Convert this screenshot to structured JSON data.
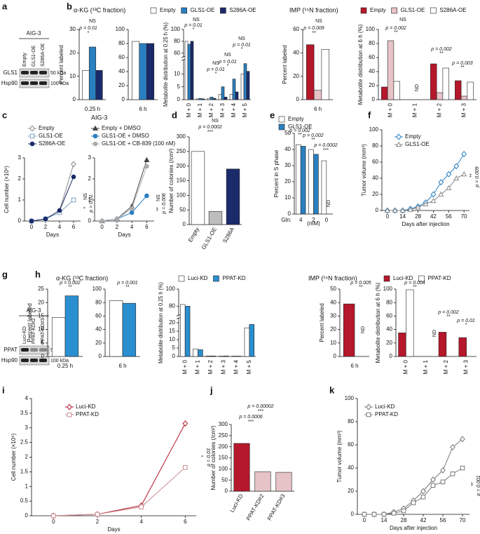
{
  "panel_labels": [
    "a",
    "b",
    "c",
    "d",
    "e",
    "f",
    "g",
    "h",
    "i",
    "j",
    "k"
  ],
  "blots": [
    {
      "title": "AIG-3",
      "lanes": [
        "Empty",
        "GLS1-OE",
        "S286A-OE"
      ],
      "proteins": [
        "GLS1",
        "Hsp90"
      ],
      "markers": [
        "50 kDa",
        "100 kDa"
      ]
    },
    {
      "title": "AIG-3",
      "lanes": [
        "Luci-KD",
        "PPAT-KD#2",
        "PPAT-KD#3"
      ],
      "proteins": [
        "PPAT",
        "Hsp90"
      ],
      "markers": [
        "50 kDa",
        "100 kDa"
      ]
    }
  ],
  "chart_data": [
    {
      "type": "bar",
      "title": "α-KG (¹³C fraction)",
      "ylabel": "Percent labeled",
      "xlabel": "0.25 h",
      "categories": [
        null
      ],
      "series": [
        {
          "name": "Empty",
          "color": "#ffffff",
          "values": [
            12.5
          ]
        },
        {
          "name": "GLS1-OE",
          "color": "#2a7fc0",
          "values": [
            22.5
          ]
        },
        {
          "name": "S286A-OE",
          "color": "#1b2a6b",
          "values": [
            12.5
          ]
        }
      ],
      "ylim": [
        0,
        30
      ],
      "yticks": [
        0,
        10,
        20,
        30
      ],
      "annotations": [
        "NS",
        "p = 0.01",
        "*"
      ]
    },
    {
      "type": "bar",
      "xlabel": "6 h",
      "categories": [
        null
      ],
      "series": [
        {
          "color": "#ffffff",
          "values": [
            83
          ]
        },
        {
          "color": "#2a7fc0",
          "values": [
            80
          ]
        },
        {
          "color": "#1b2a6b",
          "values": [
            80
          ]
        }
      ],
      "ylim": [
        0,
        100
      ],
      "yticks": [
        0,
        20,
        40,
        60,
        80,
        100
      ]
    },
    {
      "type": "bar",
      "ylabel": "Metabolite distribution at 0.25 h (%)",
      "categories": [
        "M + 0",
        "M + 1",
        "M + 2",
        "M + 3",
        "M + 4",
        "M + 5"
      ],
      "series": [
        {
          "color": "#ffffff",
          "values": [
            80,
            0.3,
            0.5,
            2,
            2,
            10
          ]
        },
        {
          "color": "#2a7fc0",
          "values": [
            75,
            0.5,
            1,
            5,
            8,
            14
          ]
        },
        {
          "color": "#1b2a6b",
          "values": [
            80,
            0.3,
            0.5,
            1,
            3,
            11
          ]
        }
      ],
      "ylim": [
        0,
        100
      ],
      "axis_break": [
        15,
        55
      ],
      "yticks": [
        0,
        5,
        10,
        60,
        80,
        100
      ],
      "annotations": [
        "NS",
        "p = 0.01",
        "*",
        "NS",
        "p = 0.01",
        "*",
        "NS",
        "p = 0.01",
        "*",
        "NS",
        "p = 0.01",
        "*"
      ]
    },
    {
      "type": "bar",
      "title": "IMP (¹⁵N fraction)",
      "ylabel": "Percent labeled",
      "xlabel": "6 h",
      "categories": [
        null
      ],
      "series": [
        {
          "name": "Empty",
          "color": "#b5172b",
          "values": [
            47
          ]
        },
        {
          "name": "GLS1-OE",
          "color": "#e6c3c6",
          "values": [
            8
          ]
        },
        {
          "name": "S286A-OE",
          "color": "#ffffff",
          "values": [
            43
          ]
        }
      ],
      "ylim": [
        0,
        60
      ],
      "yticks": [
        0,
        20,
        40,
        60
      ],
      "annotations": [
        "NS",
        "p = 0.009",
        "**"
      ]
    },
    {
      "type": "bar",
      "ylabel": "Metabolite distribution at 6 h (%)",
      "categories": [
        "M + 0",
        "M + 1",
        "M + 2",
        "M + 3"
      ],
      "series": [
        {
          "color": "#b5172b",
          "values": [
            18,
            null,
            51,
            27
          ]
        },
        {
          "color": "#e6c3c6",
          "values": [
            84,
            null,
            10,
            5
          ]
        },
        {
          "color": "#ffffff",
          "values": [
            26,
            null,
            45,
            25
          ]
        }
      ],
      "ylim": [
        0,
        100
      ],
      "yticks": [
        0,
        20,
        40,
        60,
        80,
        100
      ],
      "annotations": [
        "NS",
        "p = 0.002",
        "**",
        "ND",
        "p = 0.002",
        "**",
        "p = 0.003",
        "**"
      ]
    },
    {
      "type": "line",
      "title": "AIG-3",
      "ylabel": "Cell number (×10⁶)",
      "xlabel": "Days",
      "x": [
        0,
        2,
        4,
        6
      ],
      "series": [
        {
          "name": "Empty",
          "color": "#888888",
          "marker": "diamond",
          "filled": false,
          "values": [
            0,
            0.1,
            0.5,
            2.7
          ]
        },
        {
          "name": "GLS1-OE",
          "color": "#7f9fbf",
          "marker": "square",
          "filled": false,
          "values": [
            0,
            0.1,
            0.4,
            1.0
          ]
        },
        {
          "name": "S286A-OE",
          "color": "#1b2a6b",
          "marker": "circle",
          "filled": true,
          "values": [
            0,
            0.1,
            0.5,
            2.1
          ]
        }
      ],
      "xlim": [
        -1,
        7
      ],
      "xticks": [
        0,
        2,
        4,
        6
      ],
      "ylim": [
        0,
        3
      ],
      "yticks": [
        0,
        1,
        2,
        3
      ],
      "annotations": [
        "NS",
        "*",
        "p = 0.01"
      ]
    },
    {
      "type": "line",
      "xlabel": "Days",
      "x": [
        0,
        2,
        4,
        6
      ],
      "series": [
        {
          "name": "Empty + DMSO",
          "color": "#444444",
          "marker": "triangle",
          "filled": true,
          "values": [
            0,
            0.1,
            0.7,
            2.9
          ]
        },
        {
          "name": "GLS1-OE + DMSO",
          "color": "#2a7fc0",
          "marker": "circle",
          "filled": true,
          "values": [
            0,
            0.1,
            0.4,
            1.2
          ]
        },
        {
          "name": "GLS1-OE + CB-839 (100 nM)",
          "color": "#aaaaaa",
          "marker": "circle",
          "filled": true,
          "values": [
            0,
            0.1,
            0.6,
            2.6
          ]
        }
      ],
      "xlim": [
        -1,
        7
      ],
      "xticks": [
        0,
        2,
        4,
        6
      ],
      "ylim": [
        0,
        3
      ],
      "yticks": [
        0,
        1,
        2,
        3
      ],
      "annotations": [
        "NS",
        "**",
        "p = 0.006"
      ]
    },
    {
      "type": "bar",
      "ylabel": "Number of colonies (/cm²)",
      "categories": [
        "Empty",
        "GLS1-OE",
        "S286A"
      ],
      "series": [
        {
          "colors": [
            "#ffffff",
            "#bdbdbd",
            "#1b2a6b"
          ],
          "values": [
            250,
            45,
            190
          ]
        }
      ],
      "ylim": [
        0,
        300
      ],
      "yticks": [
        0,
        50,
        100,
        150,
        200,
        250,
        300
      ],
      "annotations": [
        "NS",
        "p = 0.0002",
        "***"
      ]
    },
    {
      "type": "bar",
      "ylabel": "Percent in S phase",
      "xlabel": "(mM)",
      "category_title": "Gln:",
      "categories": [
        "4",
        "2",
        "0"
      ],
      "series": [
        {
          "name": "Empty",
          "color": "#ffffff",
          "values": [
            43,
            40,
            33
          ]
        },
        {
          "name": "GLS1-OE",
          "color": "#2a7fc0",
          "values": [
            42,
            37,
            null
          ]
        }
      ],
      "ylim": [
        0,
        50
      ],
      "yticks": [
        0,
        10,
        20,
        30,
        40,
        50
      ],
      "annotations": [
        "p = 0.002",
        "**",
        "p = 0.002",
        "**",
        "p = 0.0002",
        "***",
        "ND"
      ]
    },
    {
      "type": "line",
      "ylabel": "Tumor volume (mm³)",
      "xlabel": "Days after injection",
      "x": [
        0,
        7,
        14,
        21,
        28,
        35,
        42,
        49,
        56,
        63,
        70
      ],
      "series": [
        {
          "name": "Empty",
          "color": "#2a7fc0",
          "marker": "diamond",
          "filled": false,
          "values": [
            0,
            0,
            0,
            2,
            5,
            10,
            20,
            35,
            45,
            55,
            70
          ]
        },
        {
          "name": "GLS1-OE",
          "color": "#888888",
          "marker": "triangle",
          "filled": false,
          "values": [
            0,
            0,
            0,
            1,
            4,
            8,
            12,
            20,
            28,
            40,
            45
          ]
        }
      ],
      "xlim": [
        -5,
        75
      ],
      "xticks": [
        0,
        14,
        28,
        42,
        56,
        70
      ],
      "ylim": [
        0,
        100
      ],
      "yticks": [
        0,
        20,
        40,
        60,
        80,
        100
      ],
      "annotations": [
        "**",
        "p = 0.009"
      ]
    },
    {
      "type": "bar",
      "title": "α-KG (¹³C fraction)",
      "ylabel": "Percent labeled",
      "xlabel": "0.25 h",
      "categories": [
        null
      ],
      "series": [
        {
          "name": "Luci-KD",
          "color": "#ffffff",
          "values": [
            14.5
          ]
        },
        {
          "name": "PPAT-KD",
          "color": "#2a8fd0",
          "values": [
            22.5
          ]
        }
      ],
      "ylim": [
        0,
        25
      ],
      "yticks": [
        0,
        5,
        10,
        15,
        20,
        25
      ],
      "annotations": [
        "p = 0.002",
        "**"
      ]
    },
    {
      "type": "bar",
      "xlabel": "6 h",
      "categories": [
        null
      ],
      "series": [
        {
          "color": "#ffffff",
          "values": [
            83
          ]
        },
        {
          "color": "#2a8fd0",
          "values": [
            79
          ]
        }
      ],
      "ylim": [
        0,
        100
      ],
      "yticks": [
        0,
        20,
        40,
        60,
        80,
        100
      ],
      "annotations": [
        "p = 0.001",
        "**"
      ]
    },
    {
      "type": "bar",
      "ylabel": "Metabolite distribution at 0.25 h (%)",
      "categories": [
        "M + 0",
        "M + 1",
        "M + 2",
        "M + 3",
        "M + 4",
        "M + 5"
      ],
      "series": [
        {
          "color": "#ffffff",
          "values": [
            82,
            4.5,
            0.3,
            0.2,
            0.2,
            17
          ]
        },
        {
          "color": "#2a8fd0",
          "values": [
            80,
            4,
            0.3,
            0.3,
            0.2,
            19
          ]
        }
      ],
      "ylim": [
        0,
        100
      ],
      "axis_break": [
        22,
        70
      ],
      "yticks": [
        0,
        5,
        10,
        15,
        20,
        80,
        100
      ]
    },
    {
      "type": "bar",
      "title": "IMP (¹⁵N fraction)",
      "ylabel": "Percent labeled",
      "xlabel": "6 h",
      "categories": [
        null
      ],
      "series": [
        {
          "name": "Luci-KD",
          "color": "#b5172b",
          "values": [
            39
          ]
        },
        {
          "name": "PPAT-KD",
          "color": "#ffffff",
          "values": [
            null
          ]
        }
      ],
      "ylim": [
        0,
        50
      ],
      "yticks": [
        0,
        10,
        20,
        30,
        40,
        50
      ],
      "annotations": [
        "p = 0.005",
        "**",
        "ND"
      ]
    },
    {
      "type": "bar",
      "ylabel": "Metabolite distribution at 6 h (%)",
      "categories": [
        "M + 0",
        "M + 1",
        "M + 2",
        "M + 3"
      ],
      "series": [
        {
          "color": "#b5172b",
          "values": [
            35,
            null,
            36,
            28
          ]
        },
        {
          "color": "#ffffff",
          "values": [
            99,
            null,
            0,
            0
          ]
        }
      ],
      "ylim": [
        0,
        100
      ],
      "yticks": [
        0,
        20,
        40,
        60,
        80,
        100
      ],
      "annotations": [
        "p = 0.004",
        "**",
        "ND",
        "p = 0.002",
        "**",
        "p = 0.01",
        "*"
      ]
    },
    {
      "type": "line",
      "ylabel": "Cell number (×10⁶)",
      "xlabel": "Days",
      "x": [
        0,
        2,
        4,
        6
      ],
      "series": [
        {
          "name": "Luci-KD",
          "color": "#b5172b",
          "marker": "diamond",
          "filled": false,
          "values": [
            0,
            0.05,
            0.35,
            3.15
          ]
        },
        {
          "name": "PPAT-KD",
          "color": "#c98a90",
          "marker": "square",
          "filled": false,
          "values": [
            0,
            0.05,
            0.3,
            1.65
          ]
        }
      ],
      "xlim": [
        -1,
        6.5
      ],
      "xticks": [
        0,
        2,
        4,
        6
      ],
      "ylim": [
        0,
        4
      ],
      "yticks": [
        0,
        0.5,
        1,
        1.5,
        2,
        2.5,
        3,
        3.5,
        4
      ],
      "annotations": [
        "*",
        "p = 0.03"
      ]
    },
    {
      "type": "bar",
      "ylabel": "Number of colonies (/cm²)",
      "categories": [
        "Luci-KD",
        "PPAT-KD#2",
        "PPAT-KD#3"
      ],
      "series": [
        {
          "colors": [
            "#b5172b",
            "#e6c3c6",
            "#e6c3c6"
          ],
          "values": [
            215,
            88,
            85
          ]
        }
      ],
      "ylim": [
        0,
        300
      ],
      "yticks": [
        0,
        50,
        100,
        150,
        200,
        250,
        300
      ],
      "annotations": [
        "p = 0.00002",
        "***",
        "p = 0.0006",
        "***"
      ]
    },
    {
      "type": "line",
      "ylabel": "Tumor volume (mm³)",
      "xlabel": "Days after injection",
      "x": [
        0,
        7,
        14,
        21,
        28,
        35,
        42,
        49,
        56,
        63,
        70
      ],
      "series": [
        {
          "name": "Luci-KD",
          "color": "#777777",
          "marker": "diamond",
          "filled": false,
          "values": [
            0,
            0,
            0,
            2,
            5,
            12,
            20,
            30,
            38,
            58,
            65
          ]
        },
        {
          "name": "PPAT-KD",
          "color": "#777777",
          "marker": "square",
          "filled": false,
          "values": [
            0,
            0,
            0,
            1,
            3,
            10,
            15,
            25,
            28,
            35,
            40
          ]
        }
      ],
      "xlim": [
        -5,
        75
      ],
      "xticks": [
        0,
        14,
        28,
        42,
        56,
        70
      ],
      "ylim": [
        0,
        100
      ],
      "yticks": [
        0,
        20,
        40,
        60,
        80,
        100
      ],
      "annotations": [
        "**",
        "p = 0.001"
      ]
    }
  ]
}
